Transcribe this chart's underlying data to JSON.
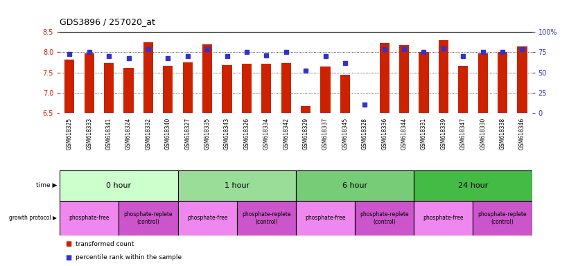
{
  "title": "GDS3896 / 257020_at",
  "samples": [
    "GSM618325",
    "GSM618333",
    "GSM618341",
    "GSM618324",
    "GSM618332",
    "GSM618340",
    "GSM618327",
    "GSM618335",
    "GSM618343",
    "GSM618326",
    "GSM618334",
    "GSM618342",
    "GSM618329",
    "GSM618337",
    "GSM618345",
    "GSM618328",
    "GSM618336",
    "GSM618344",
    "GSM618331",
    "GSM618339",
    "GSM618347",
    "GSM618330",
    "GSM618338",
    "GSM618346"
  ],
  "transformed_counts": [
    7.82,
    7.97,
    7.74,
    7.62,
    8.25,
    7.66,
    7.75,
    8.2,
    7.68,
    7.71,
    7.72,
    7.74,
    6.68,
    7.64,
    7.44,
    6.51,
    8.22,
    8.18,
    8.0,
    8.3,
    7.67,
    7.98,
    8.0,
    8.14
  ],
  "percentile_ranks": [
    73,
    75,
    70,
    68,
    79,
    68,
    70,
    79,
    70,
    75,
    71,
    75,
    52,
    70,
    62,
    10,
    79,
    79,
    75,
    80,
    70,
    75,
    75,
    79
  ],
  "ylim_left": [
    6.5,
    8.5
  ],
  "ylim_right": [
    0,
    100
  ],
  "yticks_left": [
    6.5,
    7.0,
    7.5,
    8.0,
    8.5
  ],
  "yticks_right": [
    0,
    25,
    50,
    75,
    100
  ],
  "ytick_labels_right": [
    "0",
    "25",
    "50",
    "75",
    "100%"
  ],
  "hlines": [
    7.0,
    7.5,
    8.0
  ],
  "bar_color": "#cc2200",
  "dot_color": "#3333cc",
  "time_groups": [
    {
      "label": "0 hour",
      "start": 0,
      "end": 6,
      "color": "#ccffcc"
    },
    {
      "label": "1 hour",
      "start": 6,
      "end": 12,
      "color": "#99dd99"
    },
    {
      "label": "6 hour",
      "start": 12,
      "end": 18,
      "color": "#77cc77"
    },
    {
      "label": "24 hour",
      "start": 18,
      "end": 24,
      "color": "#44bb44"
    }
  ],
  "protocol_groups": [
    {
      "label": "phosphate-free",
      "start": 0,
      "end": 3,
      "color": "#ee88ee"
    },
    {
      "label": "phosphate-replete\n(control)",
      "start": 3,
      "end": 6,
      "color": "#cc55cc"
    },
    {
      "label": "phosphate-free",
      "start": 6,
      "end": 9,
      "color": "#ee88ee"
    },
    {
      "label": "phosphate-replete\n(control)",
      "start": 9,
      "end": 12,
      "color": "#cc55cc"
    },
    {
      "label": "phosphate-free",
      "start": 12,
      "end": 15,
      "color": "#ee88ee"
    },
    {
      "label": "phosphate-replete\n(control)",
      "start": 15,
      "end": 18,
      "color": "#cc55cc"
    },
    {
      "label": "phosphate-free",
      "start": 18,
      "end": 21,
      "color": "#ee88ee"
    },
    {
      "label": "phosphate-replete\n(control)",
      "start": 21,
      "end": 24,
      "color": "#cc55cc"
    }
  ],
  "label_col_color": "#dddddd",
  "bg_color": "#ffffff"
}
